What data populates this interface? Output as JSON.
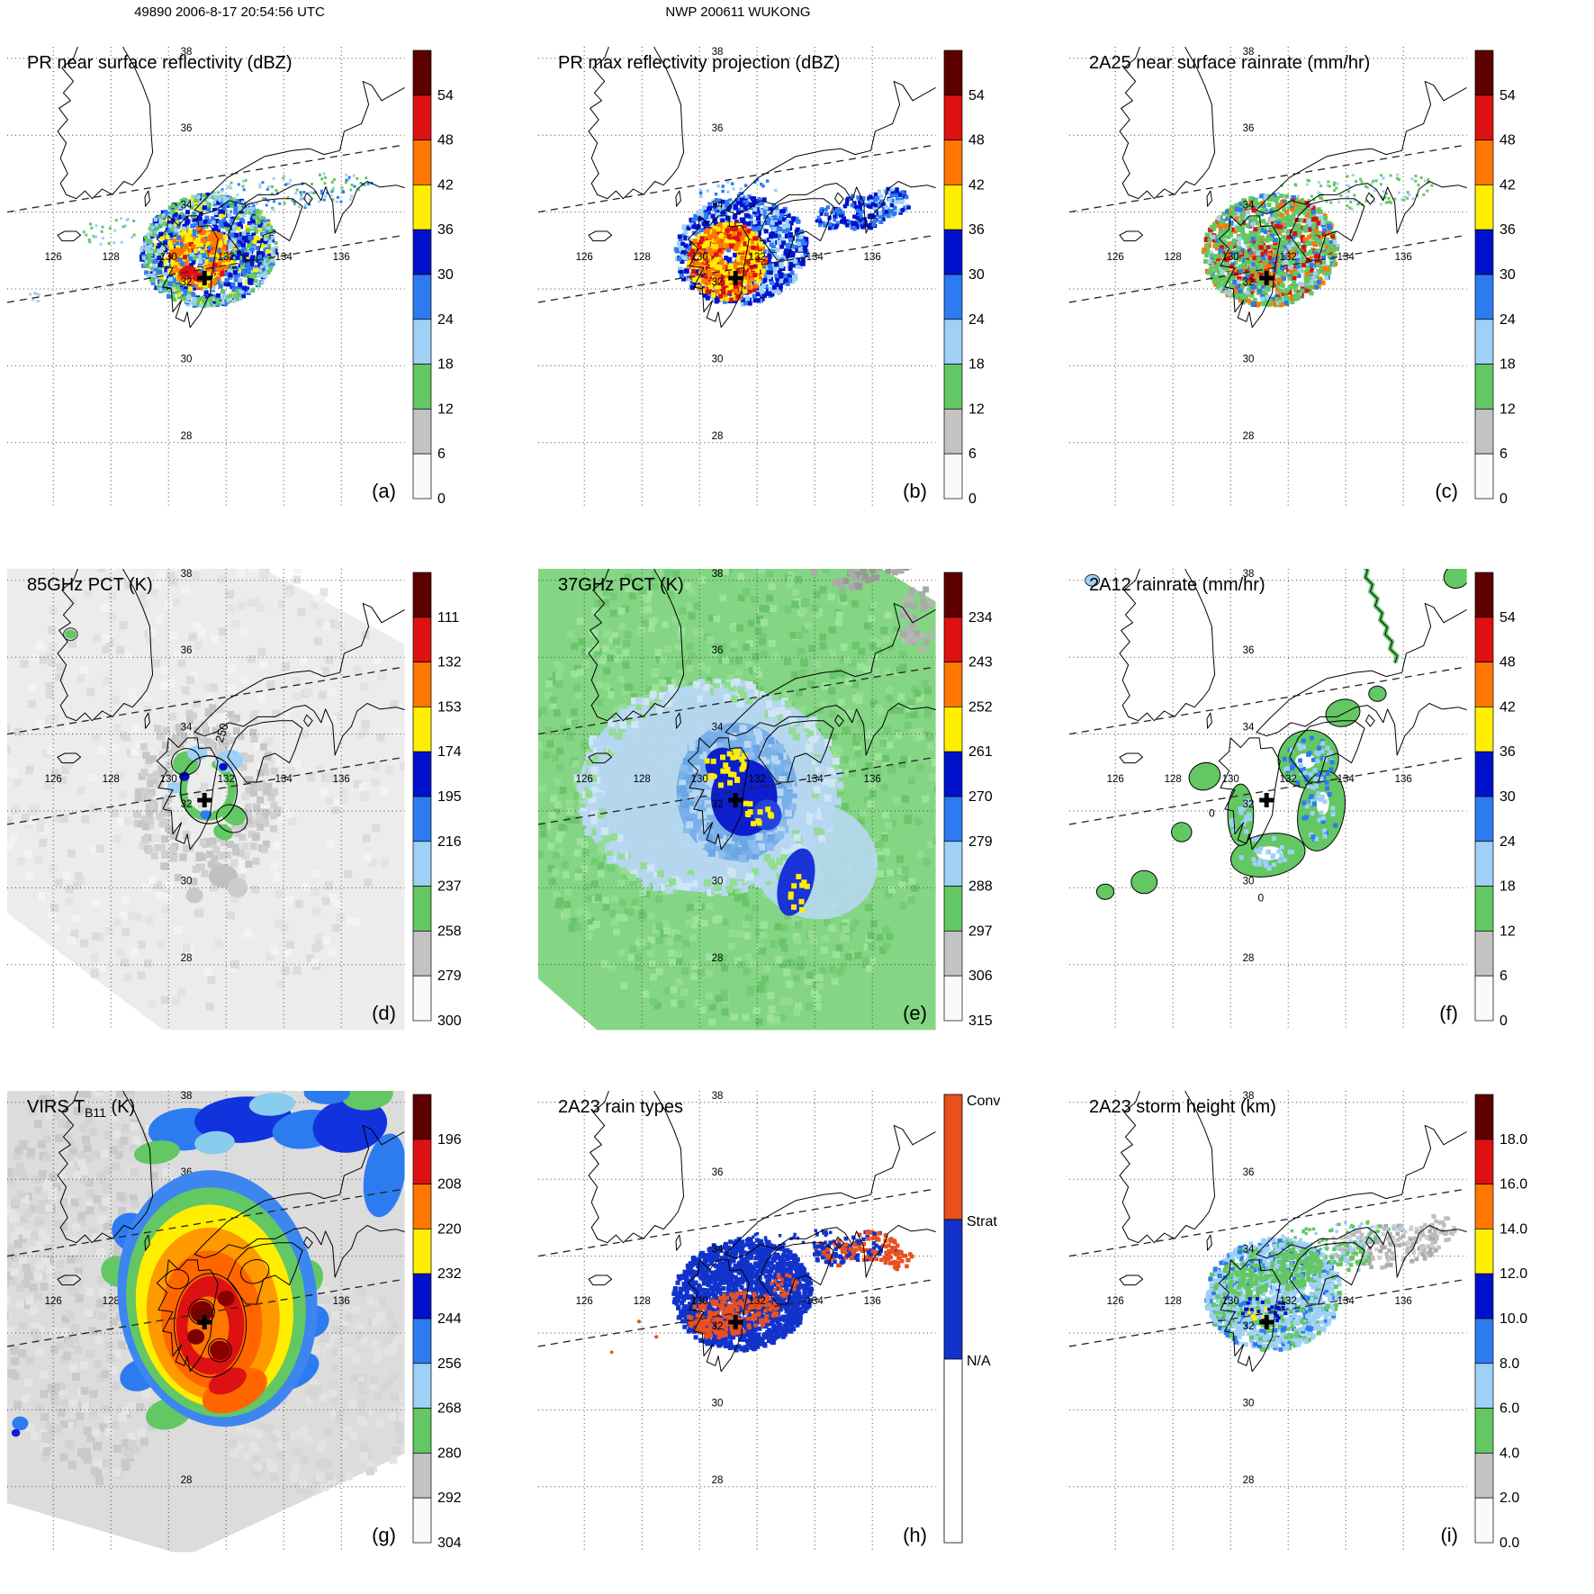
{
  "header": {
    "left_title": "49890 2006-8-17 20:54:56 UTC",
    "center_title": "NWP 200611 WUKONG"
  },
  "axes": {
    "lon_labels": [
      "126",
      "128",
      "130",
      "132",
      "134",
      "136"
    ],
    "lon_values": [
      126,
      128,
      130,
      132,
      134,
      136
    ],
    "lat_labels": [
      "38",
      "36",
      "34",
      "32",
      "30",
      "28"
    ],
    "lat_values": [
      38,
      36,
      34,
      32,
      30,
      28
    ]
  },
  "colormaps": {
    "dbz": {
      "ticks": [
        "54",
        "48",
        "42",
        "36",
        "30",
        "24",
        "18",
        "12",
        "6",
        "0"
      ],
      "colors": [
        "#5c0000",
        "#dd1111",
        "#ff7700",
        "#ffee00",
        "#0011cc",
        "#2d7bf0",
        "#9fd0f5",
        "#63c763",
        "#c3c3c3",
        "#fafafa"
      ]
    },
    "pct85": {
      "ticks": [
        "111",
        "132",
        "153",
        "174",
        "195",
        "216",
        "237",
        "258",
        "279",
        "300"
      ],
      "colors": [
        "#5c0000",
        "#dd1111",
        "#ff7700",
        "#ffee00",
        "#0011cc",
        "#2d7bf0",
        "#9fd0f5",
        "#63c763",
        "#c3c3c3",
        "#fafafa"
      ]
    },
    "pct37": {
      "ticks": [
        "234",
        "243",
        "252",
        "261",
        "270",
        "279",
        "288",
        "297",
        "306",
        "315"
      ],
      "colors": [
        "#5c0000",
        "#dd1111",
        "#ff7700",
        "#ffee00",
        "#0011cc",
        "#2d7bf0",
        "#9fd0f5",
        "#63c763",
        "#c3c3c3",
        "#fafafa"
      ]
    },
    "virs": {
      "ticks": [
        "196",
        "208",
        "220",
        "232",
        "244",
        "256",
        "268",
        "280",
        "292",
        "304"
      ],
      "colors": [
        "#5c0000",
        "#dd1111",
        "#ff7700",
        "#ffee00",
        "#0011cc",
        "#2d7bf0",
        "#9fd0f5",
        "#63c763",
        "#c3c3c3",
        "#fafafa"
      ]
    },
    "height": {
      "ticks": [
        "18.0",
        "16.0",
        "14.0",
        "12.0",
        "10.0",
        "8.0",
        "6.0",
        "4.0",
        "2.0",
        "0.0"
      ],
      "colors": [
        "#5c0000",
        "#dd1111",
        "#ff7700",
        "#ffee00",
        "#0011cc",
        "#2d7bf0",
        "#9fd0f5",
        "#63c763",
        "#c3c3c3",
        "#fafafa"
      ]
    },
    "raintype": {
      "labels": [
        "Conv",
        "Strat",
        "N/A"
      ],
      "colors": [
        "#e8501e",
        "#1133cc",
        "#ffffff"
      ]
    }
  },
  "panels": [
    {
      "id": "a",
      "label": "(a)",
      "title": "PR near surface reflectivity (dBZ)",
      "colorbar": "dbz"
    },
    {
      "id": "b",
      "label": "(b)",
      "title": "PR max reflectivity projection (dBZ)",
      "colorbar": "dbz"
    },
    {
      "id": "c",
      "label": "(c)",
      "title": "2A25 near surface rainrate (mm/hr)",
      "colorbar": "dbz"
    },
    {
      "id": "d",
      "label": "(d)",
      "title": "85GHz PCT (K)",
      "colorbar": "pct85",
      "contour_labels": [
        "250"
      ]
    },
    {
      "id": "e",
      "label": "(e)",
      "title": "37GHz PCT (K)",
      "colorbar": "pct37"
    },
    {
      "id": "f",
      "label": "(f)",
      "title": "2A12 rainrate (mm/hr)",
      "colorbar": "dbz",
      "contour_labels": [
        "0",
        "0"
      ]
    },
    {
      "id": "g",
      "label": "(g)",
      "title_parts": {
        "prefix": "VIRS T",
        "sub": "B11",
        "suffix": " (K)"
      },
      "colorbar": "virs"
    },
    {
      "id": "h",
      "label": "(h)",
      "title": "2A23 rain types",
      "colorbar": "raintype"
    },
    {
      "id": "i",
      "label": "(i)",
      "title": "2A23 storm height (km)",
      "colorbar": "height"
    }
  ],
  "chart_data": {
    "type": "heatmap",
    "description": "3x3 grid of satellite overpass maps of tropical cyclone NWP 200611 WUKONG, orbit 49890, 2006-8-17 20:54:56 UTC",
    "map_extent": {
      "lon_range": [
        124.4,
        138.3
      ],
      "lat_range": [
        26.3,
        38.3
      ]
    },
    "grid_lon": [
      126,
      128,
      130,
      132,
      134,
      136
    ],
    "grid_lat": [
      38,
      36,
      34,
      32,
      30,
      28
    ],
    "storm_center": {
      "lon": 131.25,
      "lat": 32.28
    },
    "panels": [
      {
        "panel": "a",
        "quantity": "PR near surface reflectivity",
        "units": "dBZ",
        "scale_ticks": [
          54,
          48,
          42,
          36,
          30,
          24,
          18,
          12,
          6,
          0
        ]
      },
      {
        "panel": "b",
        "quantity": "PR max reflectivity projection",
        "units": "dBZ",
        "scale_ticks": [
          54,
          48,
          42,
          36,
          30,
          24,
          18,
          12,
          6,
          0
        ]
      },
      {
        "panel": "c",
        "quantity": "2A25 near surface rainrate",
        "units": "mm/hr",
        "scale_ticks": [
          54,
          48,
          42,
          36,
          30,
          24,
          18,
          12,
          6,
          0
        ]
      },
      {
        "panel": "d",
        "quantity": "85GHz PCT",
        "units": "K",
        "scale_ticks": [
          111,
          132,
          153,
          174,
          195,
          216,
          237,
          258,
          279,
          300
        ],
        "contour_labels": [
          "250"
        ]
      },
      {
        "panel": "e",
        "quantity": "37GHz PCT",
        "units": "K",
        "scale_ticks": [
          234,
          243,
          252,
          261,
          270,
          279,
          288,
          297,
          306,
          315
        ]
      },
      {
        "panel": "f",
        "quantity": "2A12 rainrate",
        "units": "mm/hr",
        "scale_ticks": [
          54,
          48,
          42,
          36,
          30,
          24,
          18,
          12,
          6,
          0
        ],
        "contour_labels": [
          "0",
          "0"
        ]
      },
      {
        "panel": "g",
        "quantity": "VIRS TB11",
        "units": "K",
        "scale_ticks": [
          196,
          208,
          220,
          232,
          244,
          256,
          268,
          280,
          292,
          304
        ]
      },
      {
        "panel": "h",
        "quantity": "2A23 rain types",
        "units": "",
        "categories": [
          "Conv",
          "Strat",
          "N/A"
        ]
      },
      {
        "panel": "i",
        "quantity": "2A23 storm height",
        "units": "km",
        "scale_ticks": [
          18,
          16,
          14,
          12,
          10,
          8,
          6,
          4,
          2,
          0
        ]
      }
    ]
  }
}
